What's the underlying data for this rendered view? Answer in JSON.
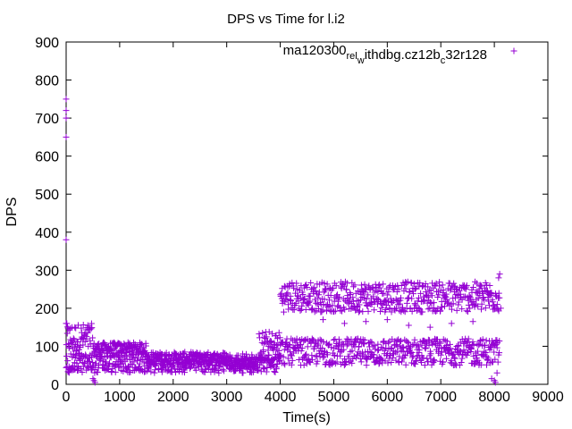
{
  "colors": {
    "series": "#9400d3",
    "axis": "#000000",
    "background": "#ffffff"
  },
  "chart_data": {
    "type": "scatter",
    "title": "DPS vs Time for l.i2",
    "xlabel": "Time(s)",
    "ylabel": "DPS",
    "xlim": [
      0,
      9000
    ],
    "ylim": [
      0,
      900
    ],
    "xticks": [
      0,
      1000,
      2000,
      3000,
      4000,
      5000,
      6000,
      7000,
      8000,
      9000
    ],
    "yticks": [
      0,
      100,
      200,
      300,
      400,
      500,
      600,
      700,
      800,
      900
    ],
    "grid": false,
    "legend_position": "top-right",
    "marker": "+",
    "legend": {
      "base": "ma120300",
      "sub1": "rel",
      "mid1": "",
      "sub2": "w",
      "mid2": "ithdbg.cz12b",
      "sub3": "c",
      "tail": "32r128"
    },
    "series": [
      {
        "name": "ma120300_rel_withdbg.cz12b_c32r128",
        "color": "#9400d3",
        "bands": [
          {
            "x": [
              0,
              500
            ],
            "y": [
              80,
              160
            ]
          },
          {
            "x": [
              500,
              1500
            ],
            "y": [
              80,
              110
            ]
          },
          {
            "x": [
              1500,
              3000
            ],
            "y": [
              50,
              85
            ]
          },
          {
            "x": [
              3000,
              3600
            ],
            "y": [
              45,
              70
            ]
          },
          {
            "x": [
              3600,
              4000
            ],
            "y": [
              60,
              140
            ]
          },
          {
            "x": [
              4000,
              8100
            ],
            "y": [
              190,
              270
            ]
          },
          {
            "x": [
              4000,
              8100
            ],
            "y": [
              50,
              120
            ]
          },
          {
            "x": [
              0,
              4000
            ],
            "y": [
              30,
              80
            ]
          }
        ],
        "x": [
          0,
          0,
          0,
          0,
          0,
          0,
          500,
          520,
          540,
          7950,
          8000,
          8020,
          8050,
          8080,
          8100,
          8120,
          4800,
          5200,
          5600,
          6000,
          6400,
          6800,
          7200,
          7600
        ],
        "y": [
          750,
          720,
          700,
          650,
          380,
          160,
          15,
          10,
          5,
          15,
          10,
          5,
          30,
          280,
          290,
          200,
          170,
          160,
          165,
          170,
          155,
          150,
          160,
          165
        ]
      }
    ]
  }
}
